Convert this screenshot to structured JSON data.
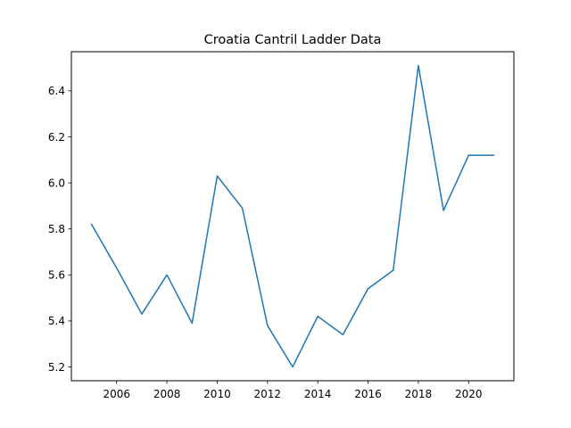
{
  "chart_data": {
    "type": "line",
    "title": "Croatia Cantril Ladder Data",
    "xlabel": "",
    "ylabel": "",
    "xlim": [
      2004.2,
      2021.8
    ],
    "ylim": [
      5.14,
      6.57
    ],
    "xticks": [
      2006,
      2008,
      2010,
      2012,
      2014,
      2016,
      2018,
      2020
    ],
    "yticks": [
      5.2,
      5.4,
      5.6,
      5.8,
      6.0,
      6.2,
      6.4
    ],
    "grid": false,
    "series": [
      {
        "color": "#1f77b4",
        "x": [
          2005,
          2006,
          2007,
          2008,
          2009,
          2010,
          2011,
          2012,
          2013,
          2014,
          2015,
          2016,
          2017,
          2018,
          2019,
          2020,
          2021
        ],
        "y": [
          5.82,
          5.63,
          5.43,
          5.6,
          5.39,
          6.03,
          5.89,
          5.38,
          5.2,
          5.42,
          5.34,
          5.54,
          5.62,
          6.51,
          5.88,
          6.12,
          6.12
        ]
      }
    ]
  }
}
